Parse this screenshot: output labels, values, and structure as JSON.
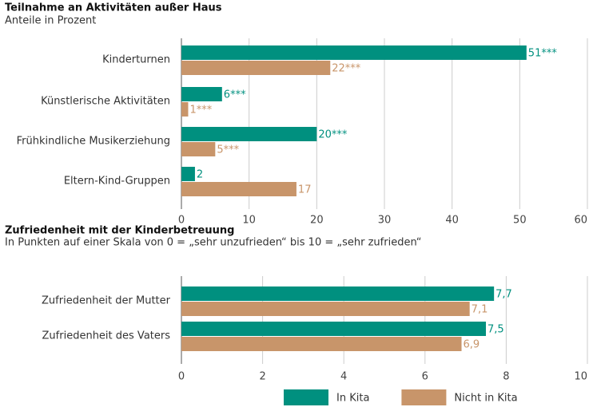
{
  "chart_data": [
    {
      "type": "hbar",
      "title": "Teilnahme an Aktivitäten außer Haus",
      "subtitle": "Anteile in Prozent",
      "categories": [
        "Kinderturnen",
        "Künstlerische Aktivitäten",
        "Frühkindliche Musikerziehung",
        "Eltern-Kind-Gruppen"
      ],
      "series": [
        {
          "color": "#00907f",
          "values": [
            51,
            6,
            20,
            2
          ],
          "value_labels": [
            "51***",
            "6***",
            "20***",
            "2"
          ]
        },
        {
          "color": "#c8956a",
          "values": [
            22,
            1,
            5,
            17
          ],
          "value_labels": [
            "22***",
            "1***",
            "5***",
            "17"
          ]
        }
      ],
      "xlim": [
        0,
        60
      ],
      "xticks": [
        0,
        10,
        20,
        30,
        40,
        50,
        60
      ],
      "grid": true
    },
    {
      "type": "hbar",
      "title": "Zufriedenheit mit der Kinderbetreuung",
      "subtitle": "In Punkten auf einer Skala von 0 = „sehr unzufrieden“ bis 10 = „sehr zufrieden“",
      "categories": [
        "Zufriedenheit der  Mutter",
        "Zufriedenheit des Vaters"
      ],
      "series": [
        {
          "name": "In Kita",
          "color": "#00907f",
          "values": [
            7.7,
            7.5
          ],
          "value_labels": [
            "7,7",
            "7,5"
          ]
        },
        {
          "name": "Nicht in Kita",
          "color": "#c8956a",
          "values": [
            7.1,
            6.9
          ],
          "value_labels": [
            "7,1",
            "6,9"
          ]
        }
      ],
      "xlim": [
        0,
        10
      ],
      "xticks": [
        0,
        2,
        4,
        6,
        8,
        10
      ],
      "grid": true,
      "legend": "bottom"
    }
  ]
}
